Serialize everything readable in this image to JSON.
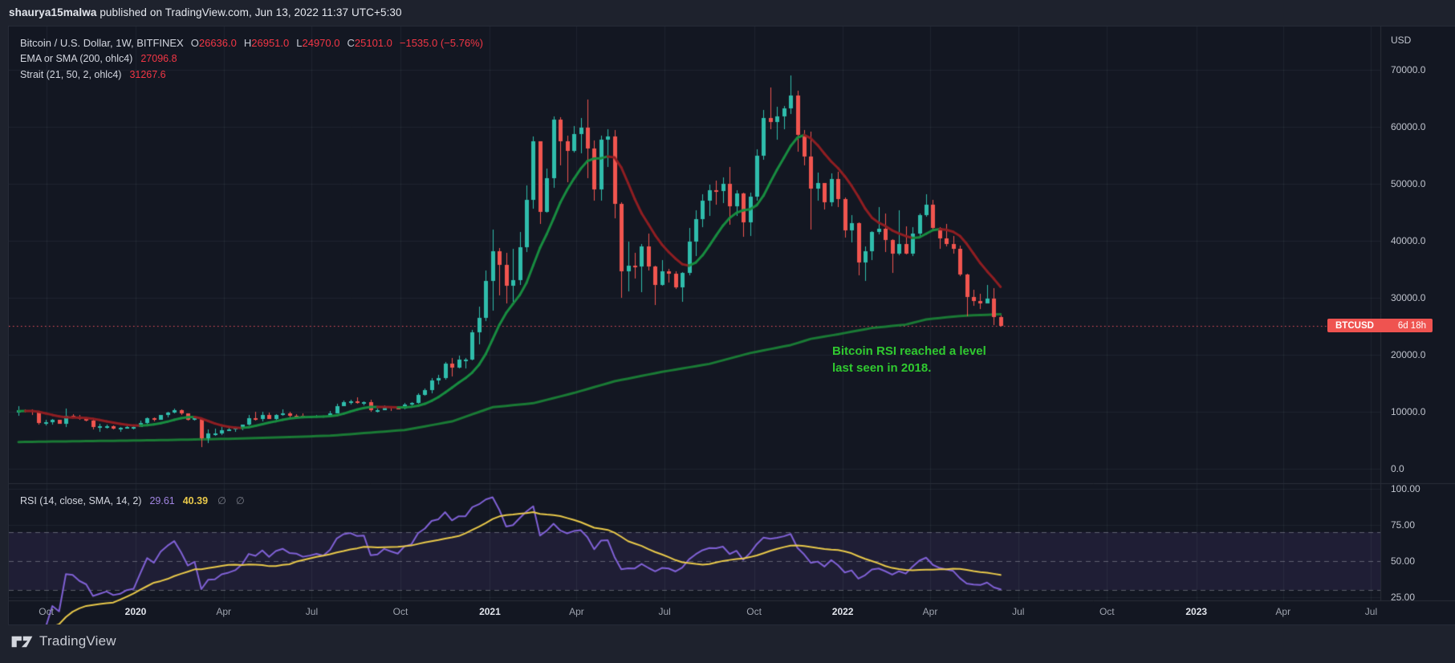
{
  "header": {
    "username": "shaurya15malwa",
    "rest": " published on TradingView.com, Jun 13, 2022 11:37 UTC+5:30"
  },
  "legend": {
    "symbol_title": "Bitcoin / U.S. Dollar, 1W, BITFINEX",
    "ohlc": [
      {
        "k": "O",
        "v": "26636.0"
      },
      {
        "k": "H",
        "v": "26951.0"
      },
      {
        "k": "L",
        "v": "24970.0"
      },
      {
        "k": "C",
        "v": "25101.0"
      }
    ],
    "change": "−1535.0 (−5.76%)",
    "ma_label": "EMA or SMA (200, ohlc4)",
    "ma_value": "27096.8",
    "strait_label": "Strait (21, 50, 2, ohlc4)",
    "strait_value": "31267.6"
  },
  "rsi_legend": {
    "label": "RSI (14, close, SMA, 14, 2)",
    "rsi_value": "29.61",
    "ma_value": "40.39",
    "empty1": "∅",
    "empty2": "∅"
  },
  "annotation": {
    "line1": "Bitcoin RSI reached a level",
    "line2": "last seen in 2018."
  },
  "price_axis": {
    "title": "USD",
    "labels": [
      "70000.0",
      "60000.0",
      "50000.0",
      "40000.0",
      "30000.0",
      "20000.0",
      "10000.0",
      "0.0"
    ],
    "values": [
      70000,
      60000,
      50000,
      40000,
      30000,
      20000,
      10000,
      0
    ]
  },
  "rsi_axis": {
    "labels": [
      "100.00",
      "75.00",
      "50.00",
      "25.00"
    ],
    "values": [
      100,
      75,
      50,
      25
    ]
  },
  "badge": {
    "symbol": "BTCUSD",
    "countdown": "6d 18h"
  },
  "footer": {
    "brand": "TradingView"
  },
  "time_axis": [
    {
      "label": "Oct",
      "week": 4.1,
      "bold": false
    },
    {
      "label": "2020",
      "week": 17.3,
      "bold": true
    },
    {
      "label": "Apr",
      "week": 30.3,
      "bold": false
    },
    {
      "label": "Jul",
      "week": 43.3,
      "bold": false
    },
    {
      "label": "Oct",
      "week": 56.4,
      "bold": false
    },
    {
      "label": "2021",
      "week": 69.6,
      "bold": true
    },
    {
      "label": "Apr",
      "week": 82.4,
      "bold": false
    },
    {
      "label": "Jul",
      "week": 95.4,
      "bold": false
    },
    {
      "label": "Oct",
      "week": 108.6,
      "bold": false
    },
    {
      "label": "2022",
      "week": 121.7,
      "bold": true
    },
    {
      "label": "Apr",
      "week": 134.6,
      "bold": false
    },
    {
      "label": "Jul",
      "week": 147.6,
      "bold": false
    },
    {
      "label": "Oct",
      "week": 160.7,
      "bold": false
    },
    {
      "label": "2023",
      "week": 173.9,
      "bold": true
    },
    {
      "label": "Apr",
      "week": 186.7,
      "bold": false
    },
    {
      "label": "Jul",
      "week": 199.7,
      "bold": false
    }
  ],
  "colors": {
    "page_bg": "#1e222d",
    "chart_bg": "#131722",
    "grid": "rgba(243,246,255,0.055)",
    "border": "#2a2e39",
    "up": "#2fbdac",
    "down": "#f1554f",
    "ma200": "#1a7a35",
    "strait_up": "#188c40",
    "strait_down": "#8f1e22",
    "rsi": "#8061d6",
    "rsi_ma": "#e9c94a",
    "level": "rgba(150,153,163,0.55)",
    "band": "rgba(136,98,224,0.10)",
    "last_price_line": "#f0525f",
    "value_red": "#f23645",
    "badge_bg": "#ef5350",
    "annotation": "#30c930"
  },
  "chart_data": {
    "type": "candlestick",
    "title": "Bitcoin / U.S. Dollar weekly with EMA/SMA(200), Strait MA and RSI(14) sub-panel",
    "symbol": "BTCUSD",
    "exchange": "BITFINEX",
    "timeframe": "1W",
    "start_week": "2019-09-02",
    "interval_days": 7,
    "price_ylim": [
      -2500,
      77600
    ],
    "price_gridstep": 10000,
    "rsi_ylim": [
      22,
      103
    ],
    "rsi_levels": {
      "upper": 70,
      "middle": 50,
      "lower": 30
    },
    "last_price": 25101,
    "current_bar": {
      "open": 26636.0,
      "high": 26951.0,
      "low": 24970.0,
      "close": 25101.0,
      "change": -1535.0,
      "change_pct": -5.76
    },
    "indicators": {
      "ma200": {
        "label": "EMA or SMA (200, ohlc4)",
        "current": 27096.8
      },
      "strait": {
        "label": "Strait (21, 50, 2, ohlc4)",
        "current": 31267.6
      },
      "rsi": {
        "label": "RSI (14, close, SMA, 14, 2)",
        "current": 29.61,
        "sma_current": 40.39
      }
    },
    "ohlc": [
      [
        9800,
        10950,
        9350,
        10350
      ],
      [
        10350,
        10480,
        9870,
        10320
      ],
      [
        10320,
        10380,
        9480,
        10020
      ],
      [
        10020,
        10060,
        7700,
        8050
      ],
      [
        8050,
        8530,
        7650,
        8150
      ],
      [
        8150,
        8700,
        7800,
        8580
      ],
      [
        8580,
        8650,
        7850,
        7950
      ],
      [
        7950,
        10540,
        7350,
        9250
      ],
      [
        9250,
        9590,
        8970,
        9200
      ],
      [
        9200,
        9470,
        8650,
        8770
      ],
      [
        8770,
        8850,
        8250,
        8500
      ],
      [
        8500,
        8570,
        6850,
        7300
      ],
      [
        7300,
        7890,
        6530,
        7400
      ],
      [
        7400,
        7750,
        7090,
        7500
      ],
      [
        7500,
        7590,
        6870,
        7100
      ],
      [
        7100,
        7380,
        6430,
        7150
      ],
      [
        7150,
        7440,
        7030,
        7300
      ],
      [
        7300,
        7530,
        6850,
        7350
      ],
      [
        7350,
        8460,
        7320,
        8020
      ],
      [
        8020,
        9000,
        7900,
        8900
      ],
      [
        8900,
        9020,
        8240,
        8600
      ],
      [
        8600,
        9450,
        8570,
        9390
      ],
      [
        9390,
        9960,
        9070,
        9900
      ],
      [
        9900,
        10500,
        9660,
        10350
      ],
      [
        10350,
        10390,
        9380,
        9650
      ],
      [
        9650,
        9680,
        8420,
        8600
      ],
      [
        8600,
        9190,
        8410,
        8900
      ],
      [
        8900,
        8920,
        3860,
        5300
      ],
      [
        5300,
        6920,
        4450,
        6200
      ],
      [
        6200,
        6980,
        5750,
        6250
      ],
      [
        6250,
        7290,
        5860,
        6740
      ],
      [
        6740,
        7470,
        6550,
        6900
      ],
      [
        6900,
        7290,
        6470,
        7130
      ],
      [
        7130,
        7780,
        6770,
        7700
      ],
      [
        7700,
        9470,
        7620,
        8900
      ],
      [
        8900,
        10070,
        8520,
        8700
      ],
      [
        8700,
        9940,
        8290,
        9380
      ],
      [
        9380,
        9890,
        8700,
        8720
      ],
      [
        8720,
        9620,
        8640,
        9450
      ],
      [
        9450,
        10430,
        9330,
        9750
      ],
      [
        9750,
        9990,
        8910,
        9350
      ],
      [
        9350,
        9590,
        8950,
        9300
      ],
      [
        9300,
        9700,
        8830,
        9010
      ],
      [
        9010,
        9290,
        8940,
        9130
      ],
      [
        9130,
        9480,
        9050,
        9300
      ],
      [
        9300,
        9340,
        9050,
        9160
      ],
      [
        9160,
        10120,
        9100,
        9700
      ],
      [
        9700,
        11430,
        9650,
        11050
      ],
      [
        11050,
        11920,
        10940,
        11680
      ],
      [
        11680,
        12090,
        11250,
        11850
      ],
      [
        11850,
        12470,
        11350,
        11650
      ],
      [
        11650,
        11820,
        11130,
        11710
      ],
      [
        11710,
        12050,
        9960,
        10250
      ],
      [
        10250,
        10590,
        9820,
        10340
      ],
      [
        10340,
        11180,
        10230,
        10920
      ],
      [
        10920,
        10990,
        10140,
        10720
      ],
      [
        10720,
        10950,
        10380,
        10550
      ],
      [
        10550,
        11490,
        10490,
        11300
      ],
      [
        11300,
        11730,
        11150,
        11510
      ],
      [
        11510,
        13230,
        11400,
        13010
      ],
      [
        13010,
        14100,
        12880,
        13800
      ],
      [
        13800,
        15960,
        13290,
        15500
      ],
      [
        15500,
        16480,
        14810,
        15950
      ],
      [
        15950,
        18770,
        15670,
        18410
      ],
      [
        18410,
        19480,
        16250,
        17700
      ],
      [
        17700,
        19900,
        17580,
        19150
      ],
      [
        19150,
        19420,
        17620,
        19150
      ],
      [
        19150,
        24300,
        19050,
        23900
      ],
      [
        23900,
        28420,
        21900,
        26450
      ],
      [
        26450,
        34800,
        25850,
        33000
      ],
      [
        33000,
        41950,
        27700,
        38150
      ],
      [
        38150,
        38800,
        30400,
        35800
      ],
      [
        35800,
        37850,
        28950,
        32100
      ],
      [
        32100,
        38650,
        29250,
        33100
      ],
      [
        33100,
        41550,
        32300,
        38900
      ],
      [
        38900,
        49700,
        38050,
        47200
      ],
      [
        47200,
        58350,
        45570,
        57400
      ],
      [
        57400,
        57500,
        43000,
        45100
      ],
      [
        45100,
        52650,
        44950,
        50950
      ],
      [
        50950,
        61800,
        49270,
        61200
      ],
      [
        61200,
        61700,
        53220,
        57400
      ],
      [
        57400,
        58400,
        50300,
        55800
      ],
      [
        55800,
        60080,
        55450,
        58750
      ],
      [
        58750,
        61500,
        55400,
        59800
      ],
      [
        59800,
        64850,
        51000,
        56200
      ],
      [
        56200,
        57600,
        47050,
        49000
      ],
      [
        49000,
        58500,
        47100,
        57800
      ],
      [
        57800,
        59600,
        52950,
        58250
      ],
      [
        58250,
        59500,
        43880,
        46450
      ],
      [
        46450,
        46700,
        30000,
        34700
      ],
      [
        34700,
        39900,
        31100,
        35650
      ],
      [
        35650,
        37950,
        33350,
        35500
      ],
      [
        35500,
        39470,
        31000,
        39000
      ],
      [
        39000,
        41330,
        34800,
        35500
      ],
      [
        35500,
        35600,
        28800,
        32300
      ],
      [
        32300,
        36600,
        32060,
        34700
      ],
      [
        34700,
        35050,
        32660,
        34250
      ],
      [
        34250,
        34660,
        31550,
        31800
      ],
      [
        31800,
        34500,
        29300,
        34300
      ],
      [
        34300,
        42320,
        33900,
        39850
      ],
      [
        39850,
        45340,
        37350,
        43800
      ],
      [
        43800,
        48150,
        42450,
        47100
      ],
      [
        47100,
        49800,
        44380,
        48900
      ],
      [
        48900,
        50500,
        46350,
        48800
      ],
      [
        48800,
        51100,
        46550,
        50000
      ],
      [
        50000,
        52950,
        42800,
        46050
      ],
      [
        46050,
        48850,
        44350,
        48300
      ],
      [
        48300,
        48400,
        40700,
        43200
      ],
      [
        43200,
        48500,
        40850,
        47700
      ],
      [
        47700,
        56100,
        47100,
        54950
      ],
      [
        54950,
        62950,
        54250,
        61550
      ],
      [
        61550,
        66950,
        59600,
        60850
      ],
      [
        60850,
        63500,
        57700,
        61850
      ],
      [
        61850,
        63600,
        59550,
        63300
      ],
      [
        63300,
        69000,
        62300,
        65500
      ],
      [
        65500,
        66300,
        55600,
        58600
      ],
      [
        58600,
        59450,
        53300,
        54750
      ],
      [
        54750,
        59100,
        42000,
        49200
      ],
      [
        49200,
        51950,
        47100,
        50100
      ],
      [
        50100,
        50200,
        45550,
        46700
      ],
      [
        46700,
        51900,
        46100,
        50800
      ],
      [
        50800,
        52100,
        45900,
        47300
      ],
      [
        47300,
        47600,
        40550,
        41900
      ],
      [
        41900,
        44450,
        39650,
        43100
      ],
      [
        43100,
        43200,
        34000,
        36250
      ],
      [
        36250,
        38950,
        32950,
        38200
      ],
      [
        38200,
        41750,
        36650,
        41500
      ],
      [
        41500,
        45850,
        41150,
        42100
      ],
      [
        42100,
        44750,
        38050,
        40100
      ],
      [
        40100,
        40350,
        34300,
        37700
      ],
      [
        37700,
        45400,
        37460,
        39400
      ],
      [
        39400,
        42600,
        37600,
        37800
      ],
      [
        37800,
        42330,
        37330,
        41300
      ],
      [
        41300,
        44800,
        40610,
        44550
      ],
      [
        44550,
        48200,
        44200,
        46300
      ],
      [
        46300,
        47200,
        41900,
        42250
      ],
      [
        42250,
        42420,
        38550,
        40400
      ],
      [
        40400,
        42980,
        38960,
        39450
      ],
      [
        39450,
        40800,
        37700,
        38600
      ],
      [
        38600,
        39160,
        33750,
        34050
      ],
      [
        34050,
        34240,
        26700,
        30100
      ],
      [
        30100,
        31420,
        28650,
        29450
      ],
      [
        29450,
        30650,
        28000,
        29030
      ],
      [
        29030,
        32200,
        29000,
        29900
      ],
      [
        29900,
        31740,
        25150,
        26600
      ],
      [
        26636,
        26951,
        24970,
        25101
      ]
    ],
    "ma200_points": [
      [
        0,
        4700
      ],
      [
        20,
        5000
      ],
      [
        33,
        5300
      ],
      [
        46,
        5800
      ],
      [
        57,
        6800
      ],
      [
        64,
        8300
      ],
      [
        70,
        10800
      ],
      [
        76,
        11500
      ],
      [
        82,
        13300
      ],
      [
        88,
        15350
      ],
      [
        95,
        17000
      ],
      [
        102,
        18400
      ],
      [
        108,
        20300
      ],
      [
        114,
        21700
      ],
      [
        117,
        22800
      ],
      [
        121,
        23600
      ],
      [
        126,
        24700
      ],
      [
        131,
        25300
      ],
      [
        134,
        26200
      ],
      [
        138,
        26700
      ],
      [
        141,
        26950
      ],
      [
        145,
        27097
      ]
    ],
    "rsi_period": 14,
    "rsi_ma_period": 14,
    "strait_ema_period": 5
  }
}
